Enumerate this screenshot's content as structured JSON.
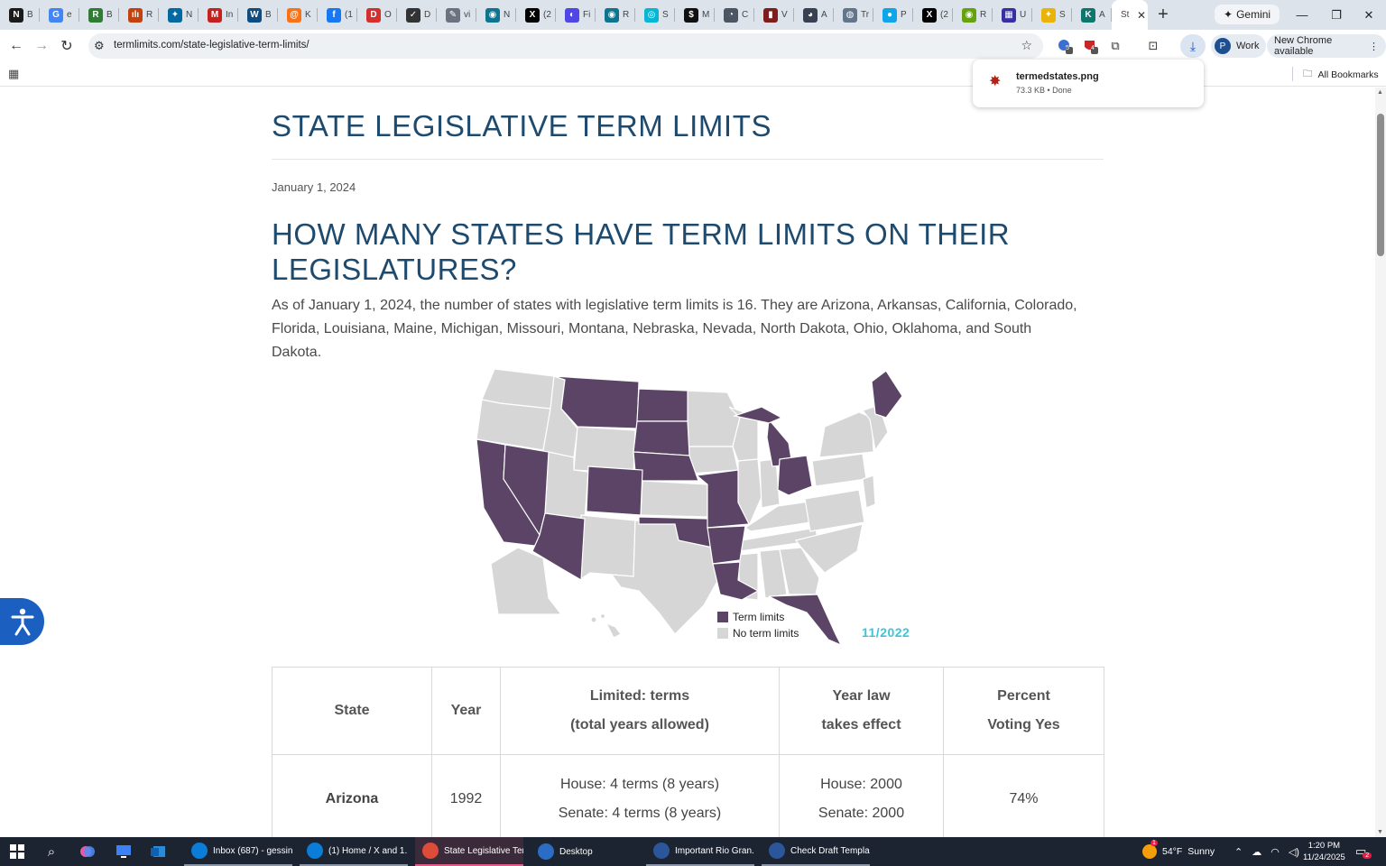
{
  "browser": {
    "tabs": [
      {
        "label": "B",
        "fav": "N",
        "color": "#1b1b1b"
      },
      {
        "label": "e",
        "fav": "G",
        "color": "#4285f4"
      },
      {
        "label": "B",
        "fav": "R",
        "color": "#2e7d32"
      },
      {
        "label": "R",
        "fav": "ılı",
        "color": "#c2410c"
      },
      {
        "label": "N",
        "fav": "✦",
        "color": "#0369a1"
      },
      {
        "label": "In",
        "fav": "M",
        "color": "#c5221f"
      },
      {
        "label": "B",
        "fav": "W",
        "color": "#0f4c81"
      },
      {
        "label": "K",
        "fav": "@",
        "color": "#f97316"
      },
      {
        "label": "(1",
        "fav": "f",
        "color": "#1877f2"
      },
      {
        "label": "O",
        "fav": "D",
        "color": "#d32f2f"
      },
      {
        "label": "D",
        "fav": "✓",
        "color": "#333333"
      },
      {
        "label": "vi",
        "fav": "✎",
        "color": "#6b7280"
      },
      {
        "label": "N",
        "fav": "◉",
        "color": "#0e7490"
      },
      {
        "label": "(2",
        "fav": "X",
        "color": "#000000"
      },
      {
        "label": "Fi",
        "fav": "◐",
        "color": "#4f46e5"
      },
      {
        "label": "R",
        "fav": "◉",
        "color": "#0e7490"
      },
      {
        "label": "S",
        "fav": "◎",
        "color": "#06b6d4"
      },
      {
        "label": "M",
        "fav": "$",
        "color": "#111111"
      },
      {
        "label": "C",
        "fav": "◔",
        "color": "#4b5563"
      },
      {
        "label": "V",
        "fav": "▮",
        "color": "#7f1d1d"
      },
      {
        "label": "A",
        "fav": "◕",
        "color": "#374151"
      },
      {
        "label": "Tr",
        "fav": "◍",
        "color": "#64748b"
      },
      {
        "label": "P",
        "fav": "●",
        "color": "#0ea5e9"
      },
      {
        "label": "(2",
        "fav": "X",
        "color": "#000000"
      },
      {
        "label": "R",
        "fav": "◉",
        "color": "#65a30d"
      },
      {
        "label": "U",
        "fav": "▦",
        "color": "#3730a3"
      },
      {
        "label": "S",
        "fav": "✦",
        "color": "#eab308"
      },
      {
        "label": "A",
        "fav": "K",
        "color": "#0f766e"
      }
    ],
    "active_tab": {
      "label": "St",
      "fav": "S"
    },
    "gemini_label": "Gemini",
    "url": "termlimits.com/state-legislative-term-limits/",
    "ext_badges": [
      "5",
      "4"
    ],
    "work_label": "Work",
    "work_avatar": "P",
    "new_chrome_label": "New Chrome available",
    "all_bookmarks_label": "All Bookmarks",
    "download": {
      "filename": "termedstates.png",
      "meta": "73.3 KB • Done"
    }
  },
  "page": {
    "title": "STATE LEGISLATIVE TERM LIMITS",
    "date": "January 1, 2024",
    "heading": "HOW MANY STATES HAVE TERM LIMITS ON THEIR LEGISLATURES?",
    "paragraph": "As of January 1, 2024, the number of states with legislative term limits is 16. They are Arizona, Arkansas, California, Colorado, Florida, Louisiana, Maine, Michigan, Missouri, Montana, Nebraska, Nevada, North Dakota, Ohio, Oklahoma, and South Dakota.",
    "map": {
      "legend": [
        {
          "label": "Term limits",
          "color": "#5b4466"
        },
        {
          "label": "No term limits",
          "color": "#d6d6d6"
        }
      ],
      "stamp": "11/2022"
    },
    "table": {
      "headers": [
        {
          "l1": "State",
          "l2": ""
        },
        {
          "l1": "Year",
          "l2": ""
        },
        {
          "l1": "Limited: terms",
          "l2": "(total years allowed)"
        },
        {
          "l1": "Year law",
          "l2": "takes effect"
        },
        {
          "l1": "Percent",
          "l2": "Voting Yes"
        }
      ],
      "rows": [
        {
          "state": "Arizona",
          "year": "1992",
          "terms1": "House: 4 terms (8 years)",
          "terms2": "Senate: 4 terms (8 years)",
          "eff1": "House: 2000",
          "eff2": "Senate: 2000",
          "pct": "74%"
        }
      ]
    }
  },
  "taskbar": {
    "apps": [
      {
        "label": "Inbox (687) - gessin...",
        "state": "open"
      },
      {
        "label": "(1) Home / X and 1...",
        "state": "open"
      },
      {
        "label": "State Legislative Ter...",
        "state": "active"
      },
      {
        "label": "Desktop",
        "state": "none"
      },
      {
        "label": "Important Rio Gran...",
        "state": "open"
      },
      {
        "label": "Check Draft Templa...",
        "state": "open"
      }
    ],
    "weather": {
      "temp": "54°F",
      "cond": "Sunny",
      "badge": "1"
    },
    "time": "1:20 PM",
    "date": "11/24/2025",
    "notif": "2"
  }
}
